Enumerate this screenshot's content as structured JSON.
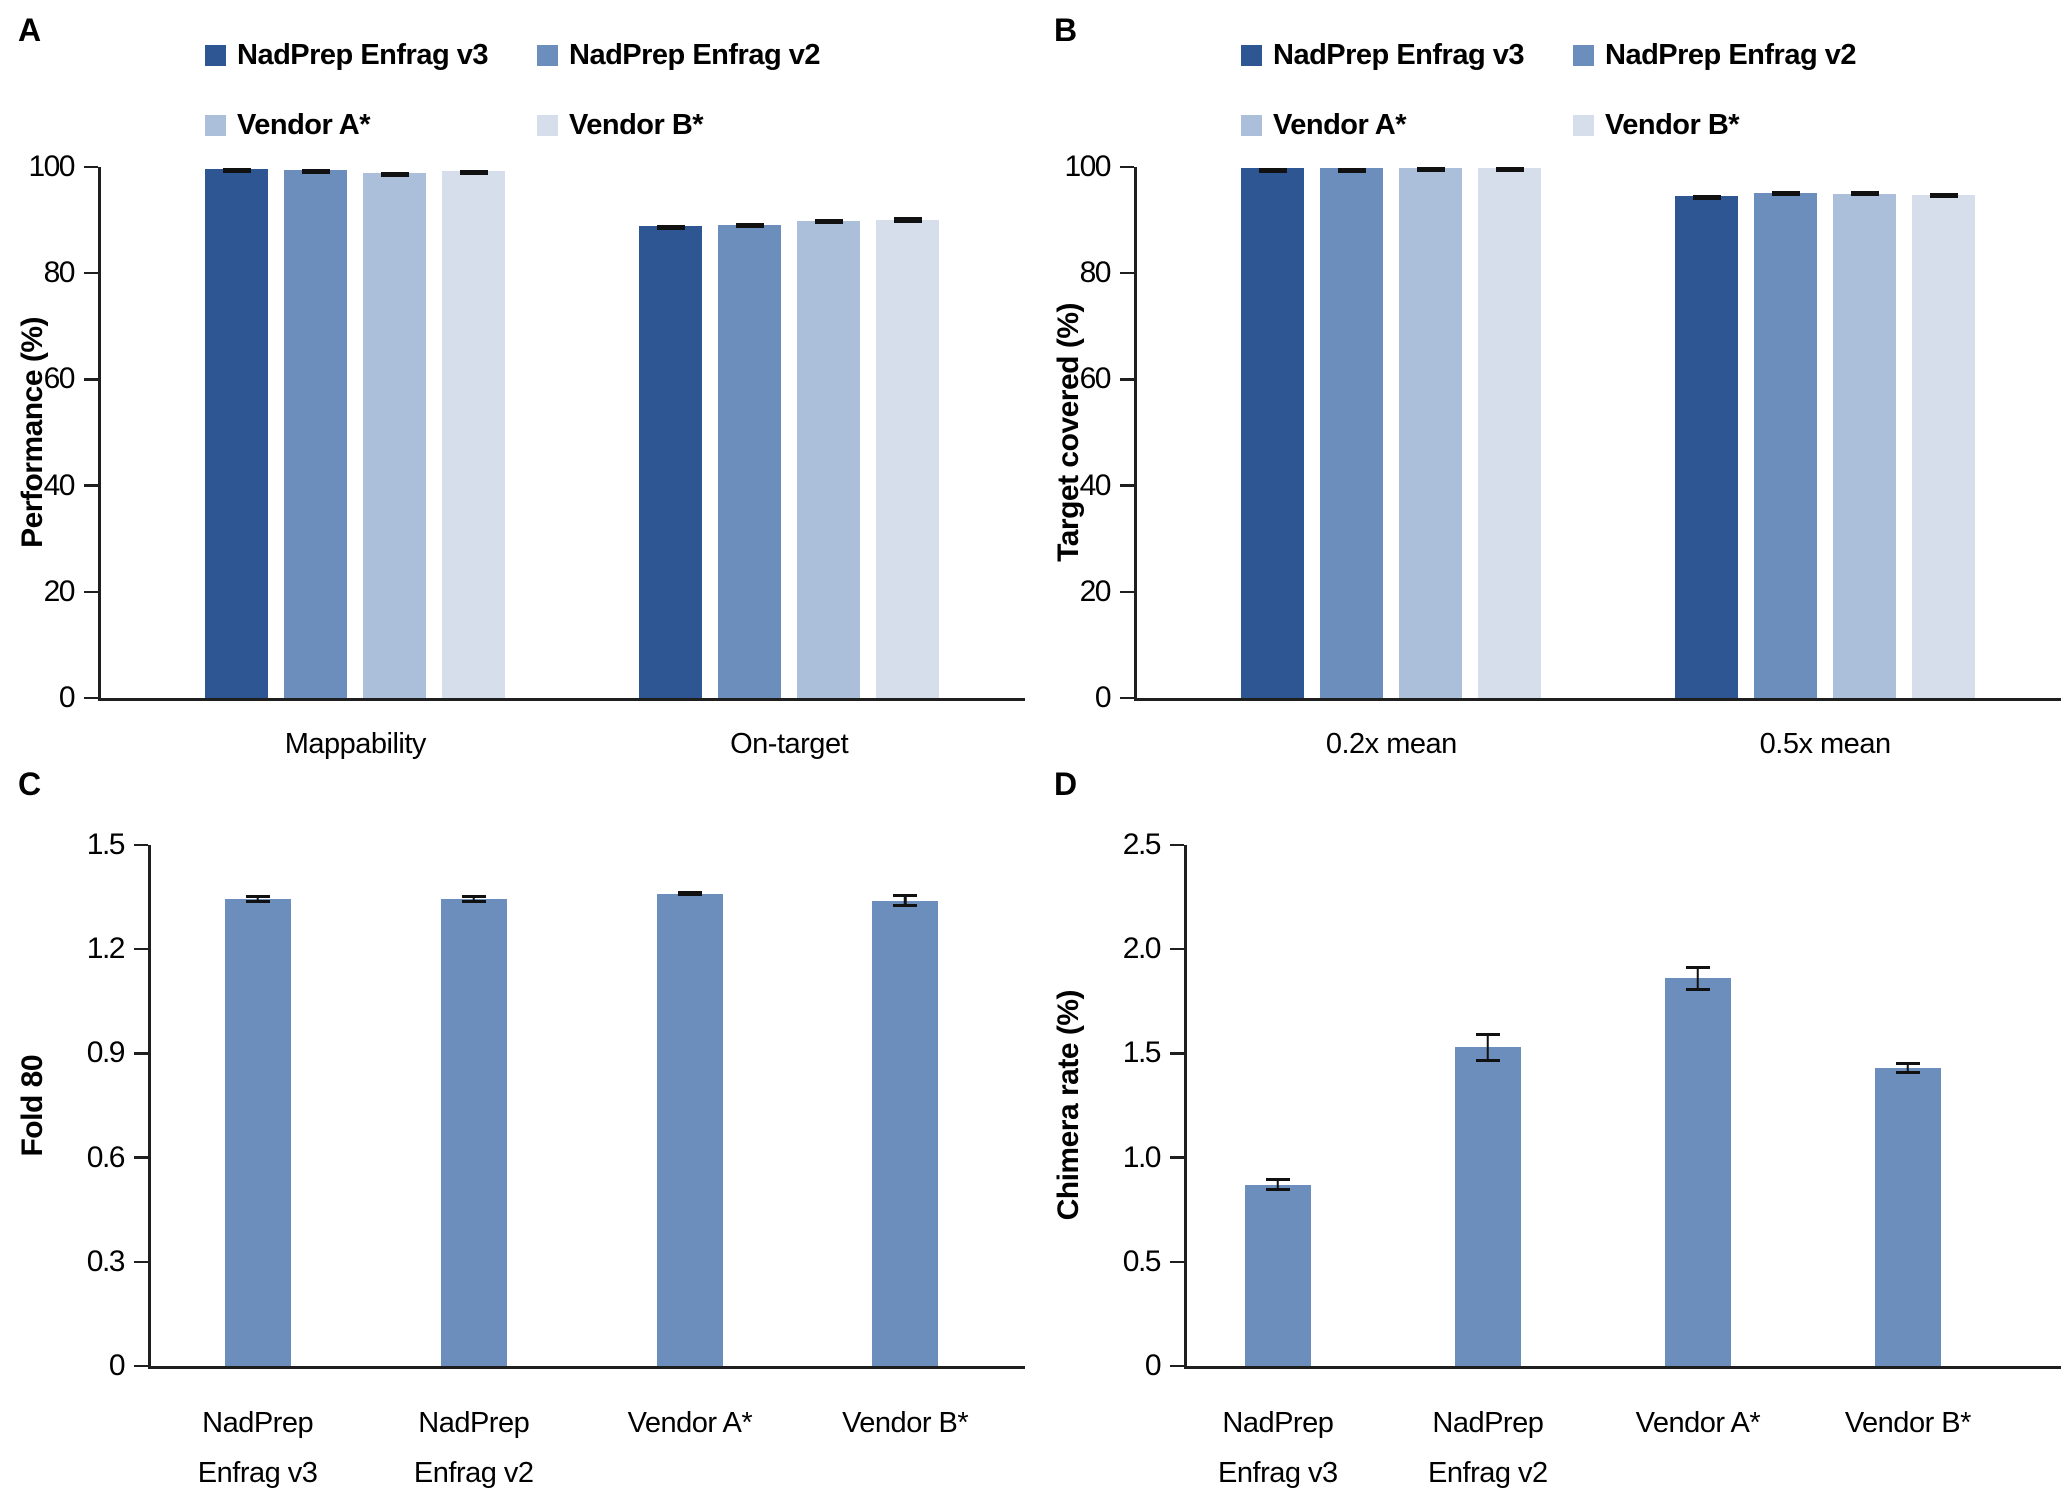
{
  "figure": {
    "background": "#ffffff",
    "panel_labels": [
      "A",
      "B",
      "C",
      "D"
    ]
  },
  "colors": {
    "series_dark_blue": "#2e5693",
    "series_medium_blue": "#6c8ebc",
    "series_light_blue": "#abbeda",
    "series_lightest_blue": "#d6deec",
    "axis": "#1f1f1f",
    "error_bar": "#111111",
    "text": "#000000"
  },
  "chart_data": [
    {
      "panel": "A",
      "type": "bar",
      "ylabel": "Performance (%)",
      "ylim": [
        0,
        100
      ],
      "yticks": [
        "0",
        "20",
        "40",
        "60",
        "80",
        "100"
      ],
      "grid": false,
      "legend_position": "top",
      "categories": [
        "Mappability",
        "On-target"
      ],
      "series": [
        {
          "name": "NadPrep Enfrag v3",
          "color": "#2e5693",
          "values": [
            99.7,
            88.9
          ],
          "errors": [
            0.15,
            0.2
          ]
        },
        {
          "name": "NadPrep Enfrag v2",
          "color": "#6c8ebc",
          "values": [
            99.5,
            89.0
          ],
          "errors": [
            0.2,
            0.4
          ]
        },
        {
          "name": "Vendor A*",
          "color": "#abbeda",
          "values": [
            98.9,
            89.8
          ],
          "errors": [
            0.2,
            0.5
          ]
        },
        {
          "name": "Vendor B*",
          "color": "#d6deec",
          "values": [
            99.3,
            90.0
          ],
          "errors": [
            0.2,
            0.5
          ]
        }
      ]
    },
    {
      "panel": "B",
      "type": "bar",
      "ylabel": "Target covered (%)",
      "ylim": [
        0,
        100
      ],
      "yticks": [
        "0",
        "20",
        "40",
        "60",
        "80",
        "100"
      ],
      "grid": false,
      "legend_position": "top",
      "categories": [
        "0.2x mean",
        "0.5x mean"
      ],
      "series": [
        {
          "name": "NadPrep Enfrag v3",
          "color": "#2e5693",
          "values": [
            99.8,
            94.6
          ],
          "errors": [
            0.1,
            0.2
          ]
        },
        {
          "name": "NadPrep Enfrag v2",
          "color": "#6c8ebc",
          "values": [
            99.8,
            95.1
          ],
          "errors": [
            0.1,
            0.4
          ]
        },
        {
          "name": "Vendor A*",
          "color": "#abbeda",
          "values": [
            99.9,
            95.0
          ],
          "errors": [
            0.1,
            0.4
          ]
        },
        {
          "name": "Vendor B*",
          "color": "#d6deec",
          "values": [
            99.9,
            94.8
          ],
          "errors": [
            0.1,
            0.3
          ]
        }
      ]
    },
    {
      "panel": "C",
      "type": "bar",
      "ylabel": "Fold 80",
      "ylim": [
        0,
        1.5
      ],
      "yticks": [
        "0",
        "0.3",
        "0.6",
        "0.9",
        "1.2",
        "1.5"
      ],
      "grid": false,
      "legend_position": "none",
      "categories": [
        [
          "NadPrep",
          "Enfrag v3"
        ],
        [
          "NadPrep",
          "Enfrag v2"
        ],
        [
          "Vendor A*"
        ],
        [
          "Vendor B*"
        ]
      ],
      "series": [
        {
          "name": "Fold 80",
          "color": "#6c8ebc",
          "values": [
            1.345,
            1.345,
            1.36,
            1.34
          ],
          "errors": [
            0.012,
            0.012,
            0.008,
            0.018
          ]
        }
      ]
    },
    {
      "panel": "D",
      "type": "bar",
      "ylabel": "Chimera rate (%)",
      "ylim": [
        0,
        2.5
      ],
      "yticks": [
        "0",
        "0.5",
        "1.0",
        "1.5",
        "2.0",
        "2.5"
      ],
      "grid": false,
      "legend_position": "none",
      "categories": [
        [
          "NadPrep",
          "Enfrag v3"
        ],
        [
          "NadPrep",
          "Enfrag v2"
        ],
        [
          "Vendor A*"
        ],
        [
          "Vendor B*"
        ]
      ],
      "series": [
        {
          "name": "Chimera rate (%)",
          "color": "#6c8ebc",
          "values": [
            0.87,
            1.53,
            1.86,
            1.43
          ],
          "errors": [
            0.03,
            0.07,
            0.06,
            0.03
          ]
        }
      ]
    }
  ]
}
